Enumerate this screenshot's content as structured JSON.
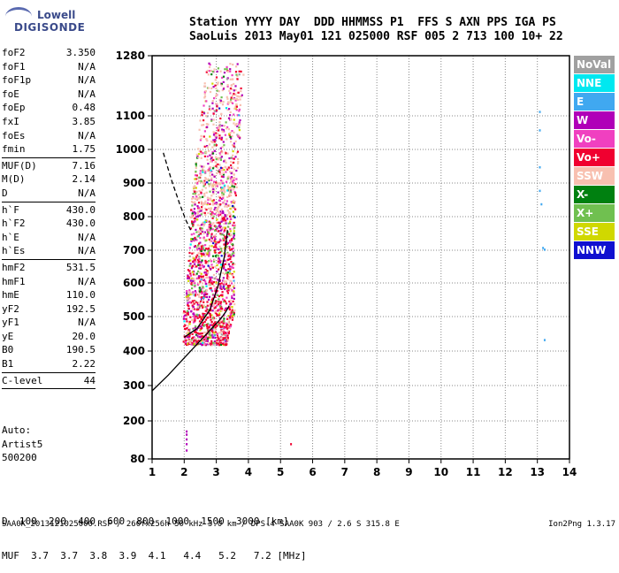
{
  "logo": {
    "line1": "Lowell",
    "line2": "DIGISONDE"
  },
  "header": {
    "line1": "Station YYYY DAY  DDD HHMMSS P1  FFS S AXN PPS IGA PS",
    "line2": "SaoLuis 2013 May01 121 025000 RSF 005 2 713 100 10+ 22"
  },
  "params": [
    [
      [
        "foF2",
        "3.350"
      ],
      [
        "foF1",
        "N/A"
      ],
      [
        "foF1p",
        "N/A"
      ],
      [
        "foE",
        "N/A"
      ],
      [
        "foEp",
        "0.48"
      ],
      [
        "fxI",
        "3.85"
      ],
      [
        "foEs",
        "N/A"
      ],
      [
        "fmin",
        "1.75"
      ]
    ],
    [
      [
        "MUF(D)",
        "7.16"
      ],
      [
        "M(D)",
        "2.14"
      ],
      [
        "D",
        "N/A"
      ]
    ],
    [
      [
        "h`F",
        "430.0"
      ],
      [
        "h`F2",
        "430.0"
      ],
      [
        "h`E",
        "N/A"
      ],
      [
        "h`Es",
        "N/A"
      ]
    ],
    [
      [
        "hmF2",
        "531.5"
      ],
      [
        "hmF1",
        "N/A"
      ],
      [
        "hmE",
        "110.0"
      ],
      [
        "yF2",
        "192.5"
      ],
      [
        "yF1",
        "N/A"
      ],
      [
        "yE",
        "20.0"
      ],
      [
        "B0",
        "190.5"
      ],
      [
        "B1",
        "2.22"
      ]
    ],
    [
      [
        "C-level",
        "44"
      ]
    ]
  ],
  "autoscaling": [
    "Auto:",
    "Artist5",
    "500200"
  ],
  "legend": [
    {
      "label": "NoVal",
      "color": "#a0a0a0"
    },
    {
      "label": "NNE",
      "color": "#00e8f0"
    },
    {
      "label": "E",
      "color": "#40a8f0"
    },
    {
      "label": "W",
      "color": "#b000b8"
    },
    {
      "label": "Vo-",
      "color": "#f040c0"
    },
    {
      "label": "Vo+",
      "color": "#f00030"
    },
    {
      "label": "SSW",
      "color": "#f8c0b0"
    },
    {
      "label": "X-",
      "color": "#008010"
    },
    {
      "label": "X+",
      "color": "#70c050"
    },
    {
      "label": "SSE",
      "color": "#d0d800"
    },
    {
      "label": "NNW",
      "color": "#1010d0"
    }
  ],
  "muf_table": {
    "d_label": "D",
    "d_values": [
      "100",
      "200",
      "400",
      "600",
      "800",
      "1000",
      "1500",
      "3000"
    ],
    "d_unit": "[km]",
    "muf_label": "MUF",
    "muf_values": [
      "3.7",
      "3.7",
      "3.8",
      "3.9",
      "4.1",
      "4.4",
      "5.2",
      "7.2"
    ],
    "muf_unit": "[MHz]"
  },
  "footer": {
    "left": "SAA0K_2013121025000.RSF / 260fx256h 50 kHz 5.0 km / DPS-4 SAA0K 903 / 2.6 S 315.8 E",
    "right": "Ion2Png 1.3.17"
  },
  "chart_data": {
    "type": "scatter",
    "x_ticks": [
      1,
      2,
      3,
      4,
      5,
      6,
      7,
      8,
      9,
      10,
      11,
      12,
      13,
      14
    ],
    "y_ticks": [
      80,
      200,
      300,
      400,
      500,
      600,
      700,
      800,
      900,
      1000,
      1100,
      1280
    ],
    "xlim": [
      1,
      14
    ],
    "ylim": [
      80,
      1280
    ],
    "grid": true,
    "scatter_bands": [
      {
        "name": "F2 trace",
        "x_range": [
          1.95,
          3.55
        ],
        "y_range": [
          420,
          1260
        ]
      }
    ],
    "isolated_points": [
      {
        "x": 2.05,
        "y": 170
      },
      {
        "x": 2.05,
        "y": 160
      },
      {
        "x": 2.05,
        "y": 145
      },
      {
        "x": 2.05,
        "y": 130
      },
      {
        "x": 2.05,
        "y": 110
      },
      {
        "x": 5.3,
        "y": 130
      },
      {
        "x": 13.05,
        "y": 1115
      },
      {
        "x": 13.05,
        "y": 1060
      },
      {
        "x": 13.05,
        "y": 950
      },
      {
        "x": 13.05,
        "y": 880
      },
      {
        "x": 13.1,
        "y": 840
      },
      {
        "x": 13.15,
        "y": 710
      },
      {
        "x": 13.2,
        "y": 705
      },
      {
        "x": 13.2,
        "y": 435
      }
    ],
    "profile_curve": {
      "style": "solid",
      "points": [
        [
          1,
          285
        ],
        [
          1.5,
          330
        ],
        [
          2,
          380
        ],
        [
          2.5,
          430
        ],
        [
          2.9,
          470
        ],
        [
          3.15,
          495
        ],
        [
          3.3,
          515
        ],
        [
          3.4,
          531.5
        ]
      ]
    },
    "trace_curve": {
      "style": "solid",
      "points": [
        [
          2.0,
          440
        ],
        [
          2.4,
          465
        ],
        [
          2.8,
          520
        ],
        [
          3.05,
          590
        ],
        [
          3.25,
          680
        ],
        [
          3.35,
          760
        ]
      ]
    },
    "extrapolation_curve": {
      "style": "dashed",
      "points": [
        [
          1.35,
          990
        ],
        [
          1.6,
          910
        ],
        [
          1.85,
          840
        ],
        [
          2.05,
          790
        ],
        [
          2.2,
          760
        ]
      ]
    }
  }
}
